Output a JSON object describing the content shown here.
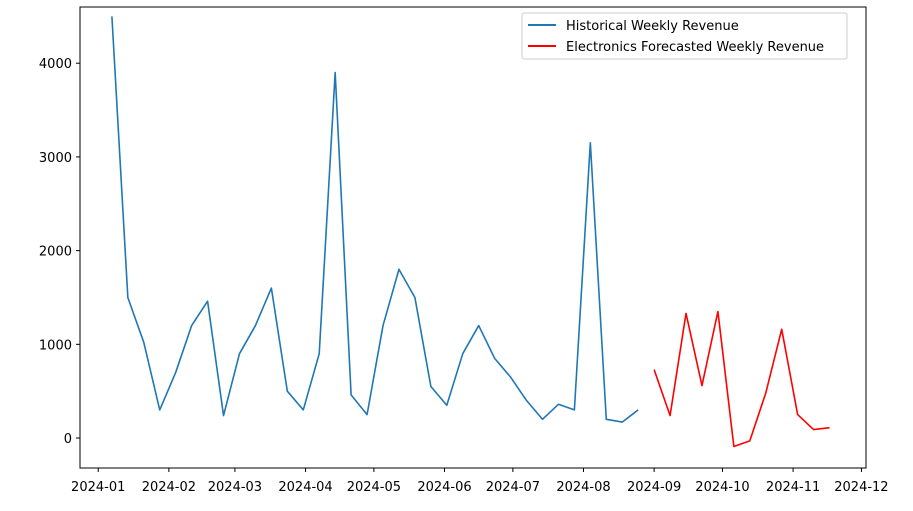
{
  "chart_data": {
    "type": "line",
    "title": "",
    "xlabel": "",
    "ylabel": "",
    "x_axis": {
      "type": "date",
      "range": [
        "2023-12-24",
        "2024-12-03"
      ],
      "ticks": [
        "2024-01-01",
        "2024-02-01",
        "2024-03-01",
        "2024-04-01",
        "2024-05-01",
        "2024-06-01",
        "2024-07-01",
        "2024-08-01",
        "2024-09-01",
        "2024-10-01",
        "2024-11-01",
        "2024-12-01"
      ],
      "tick_labels": [
        "2024-01",
        "2024-02",
        "2024-03",
        "2024-04",
        "2024-05",
        "2024-06",
        "2024-07",
        "2024-08",
        "2024-09",
        "2024-10",
        "2024-11",
        "2024-12"
      ]
    },
    "y_axis": {
      "range": [
        -320,
        4600
      ],
      "ticks": [
        0,
        1000,
        2000,
        3000,
        4000
      ],
      "tick_labels": [
        "0",
        "1000",
        "2000",
        "3000",
        "4000"
      ]
    },
    "grid": false,
    "legend_position": "top-right",
    "series": [
      {
        "name": "Historical Weekly Revenue",
        "color": "#1f77b4",
        "x": [
          "2024-01-07",
          "2024-01-14",
          "2024-01-21",
          "2024-01-28",
          "2024-02-04",
          "2024-02-11",
          "2024-02-18",
          "2024-02-25",
          "2024-03-03",
          "2024-03-10",
          "2024-03-17",
          "2024-03-24",
          "2024-03-31",
          "2024-04-07",
          "2024-04-14",
          "2024-04-21",
          "2024-04-28",
          "2024-05-05",
          "2024-05-12",
          "2024-05-19",
          "2024-05-26",
          "2024-06-02",
          "2024-06-09",
          "2024-06-16",
          "2024-06-23",
          "2024-06-30",
          "2024-07-07",
          "2024-07-14",
          "2024-07-21",
          "2024-07-28",
          "2024-08-04",
          "2024-08-11",
          "2024-08-18",
          "2024-08-25"
        ],
        "values": [
          4500,
          1500,
          1020,
          300,
          700,
          1200,
          1460,
          240,
          900,
          1200,
          1600,
          500,
          300,
          900,
          3900,
          460,
          250,
          1200,
          1800,
          1500,
          550,
          350,
          900,
          1200,
          850,
          650,
          400,
          200,
          360,
          300,
          3150,
          200,
          170,
          300
        ]
      },
      {
        "name": "Electronics Forecasted Weekly Revenue",
        "color": "#ff0000",
        "x": [
          "2024-09-01",
          "2024-09-08",
          "2024-09-15",
          "2024-09-22",
          "2024-09-29",
          "2024-10-06",
          "2024-10-13",
          "2024-10-20",
          "2024-10-27",
          "2024-11-03",
          "2024-11-10",
          "2024-11-17"
        ],
        "values": [
          730,
          240,
          1330,
          560,
          1350,
          -90,
          -30,
          480,
          1160,
          250,
          90,
          110
        ]
      }
    ]
  }
}
